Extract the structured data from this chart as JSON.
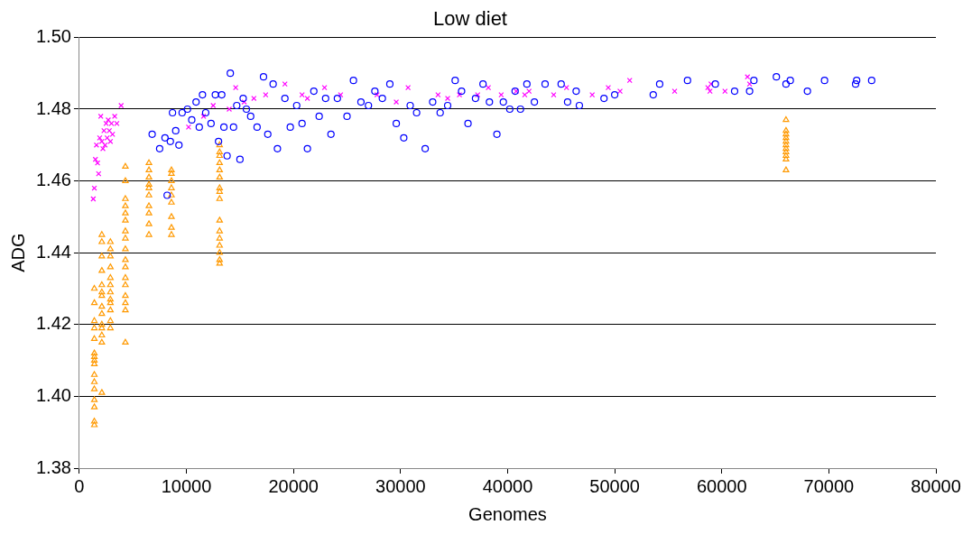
{
  "chart_data": {
    "type": "scatter",
    "title": "Low diet",
    "xlabel": "Genomes",
    "ylabel": "ADG",
    "grid": "y",
    "legend": false,
    "xlim": [
      0,
      80000
    ],
    "xticks": [
      0,
      10000,
      20000,
      30000,
      40000,
      50000,
      60000,
      70000,
      80000
    ],
    "ylim": [
      1.38,
      1.5
    ],
    "yticks": [
      {
        "value": 1.38,
        "label": "1.38"
      },
      {
        "value": 1.4,
        "label": "1.40"
      },
      {
        "value": 1.42,
        "label": "1.42"
      },
      {
        "value": 1.44,
        "label": "1.44"
      },
      {
        "value": 1.46,
        "label": "1.46"
      },
      {
        "value": 1.48,
        "label": "1.48"
      },
      {
        "value": 1.5,
        "label": "1.50"
      }
    ],
    "series": [
      {
        "color": "#0000ff",
        "marker": "circle",
        "x": [
          6800,
          7500,
          8000,
          8200,
          8500,
          8700,
          9000,
          9300,
          9600,
          10100,
          10500,
          10900,
          11200,
          11500,
          11800,
          12300,
          12700,
          13000,
          13300,
          13500,
          13800,
          14100,
          14400,
          14700,
          15000,
          15300,
          15600,
          16000,
          16600,
          17200,
          17600,
          18100,
          18500,
          19200,
          19700,
          20300,
          20800,
          21300,
          21900,
          22400,
          23000,
          23500,
          24100,
          25000,
          25600,
          26300,
          27000,
          27600,
          28300,
          29000,
          29600,
          30300,
          30900,
          31500,
          32300,
          33000,
          33700,
          34400,
          35100,
          35700,
          36300,
          37000,
          37700,
          38300,
          39000,
          39600,
          40200,
          40700,
          41200,
          41800,
          42500,
          43500,
          45000,
          45600,
          46400,
          46700,
          49000,
          50000,
          53600,
          54200,
          56800,
          59400,
          61200,
          62600,
          63000,
          65100,
          66000,
          66400,
          68000,
          69600,
          72500,
          72600,
          74000
        ],
        "values": [
          1.473,
          1.469,
          1.472,
          1.456,
          1.471,
          1.479,
          1.474,
          1.47,
          1.479,
          1.48,
          1.477,
          1.482,
          1.475,
          1.484,
          1.479,
          1.476,
          1.484,
          1.471,
          1.484,
          1.475,
          1.467,
          1.49,
          1.475,
          1.481,
          1.466,
          1.483,
          1.48,
          1.478,
          1.475,
          1.489,
          1.473,
          1.487,
          1.469,
          1.483,
          1.475,
          1.481,
          1.476,
          1.469,
          1.485,
          1.478,
          1.483,
          1.473,
          1.483,
          1.478,
          1.488,
          1.482,
          1.481,
          1.485,
          1.483,
          1.487,
          1.476,
          1.472,
          1.481,
          1.479,
          1.469,
          1.482,
          1.479,
          1.481,
          1.488,
          1.485,
          1.476,
          1.483,
          1.487,
          1.482,
          1.473,
          1.482,
          1.48,
          1.485,
          1.48,
          1.487,
          1.482,
          1.487,
          1.487,
          1.482,
          1.485,
          1.481,
          1.483,
          1.484,
          1.484,
          1.487,
          1.488,
          1.487,
          1.485,
          1.485,
          1.488,
          1.489,
          1.487,
          1.488,
          1.485,
          1.488,
          1.487,
          1.488,
          1.488
        ]
      },
      {
        "color": "#ff00ff",
        "marker": "cross",
        "x": [
          1300,
          1400,
          1500,
          1600,
          1700,
          1800,
          1900,
          2000,
          2100,
          2200,
          2300,
          2400,
          2500,
          2600,
          2700,
          2800,
          2900,
          3000,
          3100,
          3300,
          3500,
          3900,
          10200,
          11600,
          12500,
          14000,
          14600,
          15400,
          16300,
          17400,
          19200,
          20800,
          21300,
          22900,
          24400,
          27800,
          29600,
          30700,
          33500,
          34400,
          35500,
          37200,
          38200,
          39400,
          40800,
          41600,
          42000,
          44300,
          45500,
          47900,
          49400,
          50500,
          51400,
          55600,
          58700,
          58900,
          59000,
          60300,
          62400,
          62600
        ],
        "values": [
          1.455,
          1.458,
          1.466,
          1.47,
          1.465,
          1.462,
          1.472,
          1.478,
          1.471,
          1.469,
          1.474,
          1.47,
          1.476,
          1.472,
          1.477,
          1.474,
          1.471,
          1.476,
          1.473,
          1.478,
          1.476,
          1.481,
          1.475,
          1.478,
          1.481,
          1.48,
          1.486,
          1.482,
          1.483,
          1.484,
          1.487,
          1.484,
          1.483,
          1.486,
          1.484,
          1.484,
          1.482,
          1.486,
          1.484,
          1.483,
          1.484,
          1.484,
          1.486,
          1.484,
          1.485,
          1.484,
          1.485,
          1.484,
          1.486,
          1.484,
          1.486,
          1.485,
          1.488,
          1.485,
          1.486,
          1.485,
          1.487,
          1.485,
          1.489,
          1.487
        ]
      },
      {
        "color": "#ff9900",
        "marker": "triangle",
        "x": [
          1400,
          1400,
          1400,
          1400,
          1400,
          1400,
          1400,
          1400,
          1400,
          1400,
          1400,
          1400,
          1400,
          1400,
          1400,
          1400,
          2100,
          2100,
          2100,
          2100,
          2100,
          2100,
          2100,
          2100,
          2100,
          2100,
          2100,
          2100,
          2100,
          2100,
          2900,
          2900,
          2900,
          2900,
          2900,
          2900,
          2900,
          2900,
          2900,
          2900,
          2900,
          2900,
          4300,
          4300,
          4300,
          4300,
          4300,
          4300,
          4300,
          4300,
          4300,
          4300,
          4300,
          4300,
          4300,
          4300,
          4300,
          4300,
          4300,
          6500,
          6500,
          6500,
          6500,
          6500,
          6500,
          6500,
          6500,
          6500,
          6500,
          8600,
          8600,
          8600,
          8600,
          8600,
          8600,
          8600,
          8600,
          8600,
          13100,
          13100,
          13100,
          13100,
          13100,
          13100,
          13100,
          13100,
          13100,
          13100,
          13100,
          13100,
          13100,
          13100,
          13100,
          13100,
          66000,
          66000,
          66000,
          66000,
          66000,
          66000,
          66000,
          66000,
          66000,
          66000,
          66000
        ],
        "values": [
          1.392,
          1.393,
          1.397,
          1.399,
          1.402,
          1.404,
          1.406,
          1.409,
          1.41,
          1.411,
          1.412,
          1.416,
          1.419,
          1.421,
          1.426,
          1.43,
          1.401,
          1.415,
          1.417,
          1.419,
          1.42,
          1.423,
          1.425,
          1.428,
          1.429,
          1.431,
          1.435,
          1.439,
          1.443,
          1.445,
          1.419,
          1.421,
          1.424,
          1.426,
          1.427,
          1.429,
          1.431,
          1.433,
          1.436,
          1.439,
          1.441,
          1.443,
          1.415,
          1.424,
          1.426,
          1.428,
          1.431,
          1.433,
          1.436,
          1.438,
          1.441,
          1.444,
          1.446,
          1.449,
          1.451,
          1.453,
          1.455,
          1.46,
          1.464,
          1.445,
          1.448,
          1.451,
          1.453,
          1.456,
          1.458,
          1.459,
          1.461,
          1.463,
          1.465,
          1.445,
          1.447,
          1.45,
          1.454,
          1.456,
          1.458,
          1.46,
          1.462,
          1.463,
          1.437,
          1.438,
          1.44,
          1.442,
          1.444,
          1.446,
          1.449,
          1.455,
          1.457,
          1.458,
          1.461,
          1.463,
          1.465,
          1.467,
          1.468,
          1.47,
          1.463,
          1.466,
          1.467,
          1.468,
          1.469,
          1.47,
          1.471,
          1.472,
          1.473,
          1.474,
          1.477
        ]
      }
    ]
  }
}
